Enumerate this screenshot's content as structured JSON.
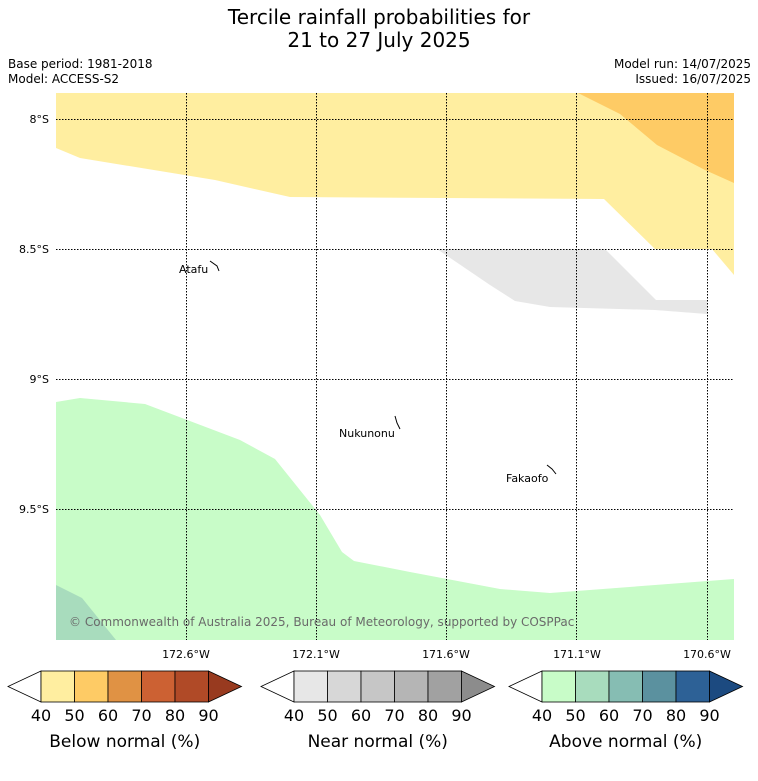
{
  "title_line1": "Tercile rainfall probabilities for",
  "title_line2": "21 to 27 July 2025",
  "meta": {
    "base_period": "Base period: 1981-2018",
    "model": "Model: ACCESS-S2",
    "model_run": "Model run: 14/07/2025",
    "issued": "Issued: 16/07/2025"
  },
  "map": {
    "lat_labels": [
      "8°S",
      "8.5°S",
      "9°S",
      "9.5°S"
    ],
    "lon_labels": [
      "172.6°W",
      "172.1°W",
      "171.6°W",
      "171.1°W",
      "170.6°W"
    ],
    "places": [
      {
        "name": "Atafu"
      },
      {
        "name": "Nukunonu"
      },
      {
        "name": "Fakaofo"
      }
    ],
    "copyright": "© Commonwealth of Australia 2025, Bureau of Meteorology, supported by COSPPac"
  },
  "colorbars": [
    {
      "title": "Below normal (%)",
      "ticks": [
        "40",
        "50",
        "60",
        "70",
        "80",
        "90"
      ],
      "colors": [
        "#ffeea0",
        "#fecb65",
        "#e09244",
        "#cc6133",
        "#b04a27",
        "#983a1f"
      ]
    },
    {
      "title": "Near normal (%)",
      "ticks": [
        "40",
        "50",
        "60",
        "70",
        "80",
        "90"
      ],
      "colors": [
        "#e7e7e7",
        "#d7d7d7",
        "#c6c6c6",
        "#b5b5b5",
        "#a1a1a1",
        "#8c8c8c"
      ]
    },
    {
      "title": "Above normal (%)",
      "ticks": [
        "40",
        "50",
        "60",
        "70",
        "80",
        "90"
      ],
      "colors": [
        "#c8fcc8",
        "#a8dcbd",
        "#86bdb3",
        "#5b919f",
        "#2d6196",
        "#1c4a80"
      ]
    }
  ]
}
